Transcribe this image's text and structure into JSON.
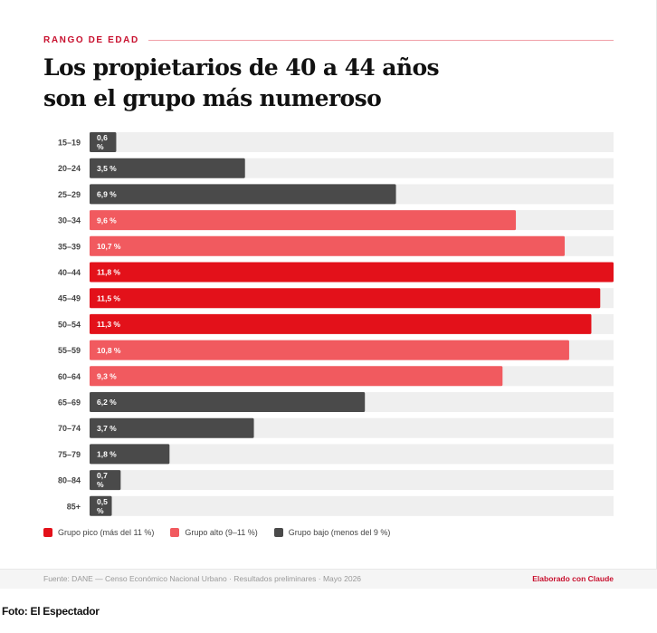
{
  "kicker": "RANGO DE EDAD",
  "title_line1": "Los propietarios de 40 a 44 años",
  "title_line2": "son el grupo más numeroso",
  "colors": {
    "track": "#efefef",
    "pico": "#e3111a",
    "alto": "#f15a5f",
    "bajo": "#4a4a4a"
  },
  "chart_data": {
    "type": "bar",
    "orientation": "horizontal",
    "xlim": [
      0,
      11.8
    ],
    "categories": [
      "15–19",
      "20–24",
      "25–29",
      "30–34",
      "35–39",
      "40–44",
      "45–49",
      "50–54",
      "55–59",
      "60–64",
      "65–69",
      "70–74",
      "75–79",
      "80–84",
      "85+"
    ],
    "values": [
      0.6,
      3.5,
      6.9,
      9.6,
      10.7,
      11.8,
      11.5,
      11.3,
      10.8,
      9.3,
      6.2,
      3.7,
      1.8,
      0.7,
      0.5
    ],
    "labels": [
      "0,6 %",
      "3,5 %",
      "6,9 %",
      "9,6 %",
      "10,7 %",
      "11,8 %",
      "11,5 %",
      "11,3 %",
      "10,8 %",
      "9,3 %",
      "6,2 %",
      "3,7 %",
      "1,8 %",
      "0,7 %",
      "0,5 %"
    ],
    "groups": [
      "bajo",
      "bajo",
      "bajo",
      "alto",
      "alto",
      "pico",
      "pico",
      "pico",
      "alto",
      "alto",
      "bajo",
      "bajo",
      "bajo",
      "bajo",
      "bajo"
    ],
    "legend": [
      {
        "group": "pico",
        "label": "Grupo pico (más del 11 %)"
      },
      {
        "group": "alto",
        "label": "Grupo alto (9–11 %)"
      },
      {
        "group": "bajo",
        "label": "Grupo bajo (menos del 9 %)"
      }
    ]
  },
  "footer": {
    "source": "Fuente: DANE — Censo Económico Nacional Urbano · Resultados preliminares · Mayo 2026",
    "credit": "Elaborado con Claude"
  },
  "photo_credit": "Foto: El Espectador"
}
